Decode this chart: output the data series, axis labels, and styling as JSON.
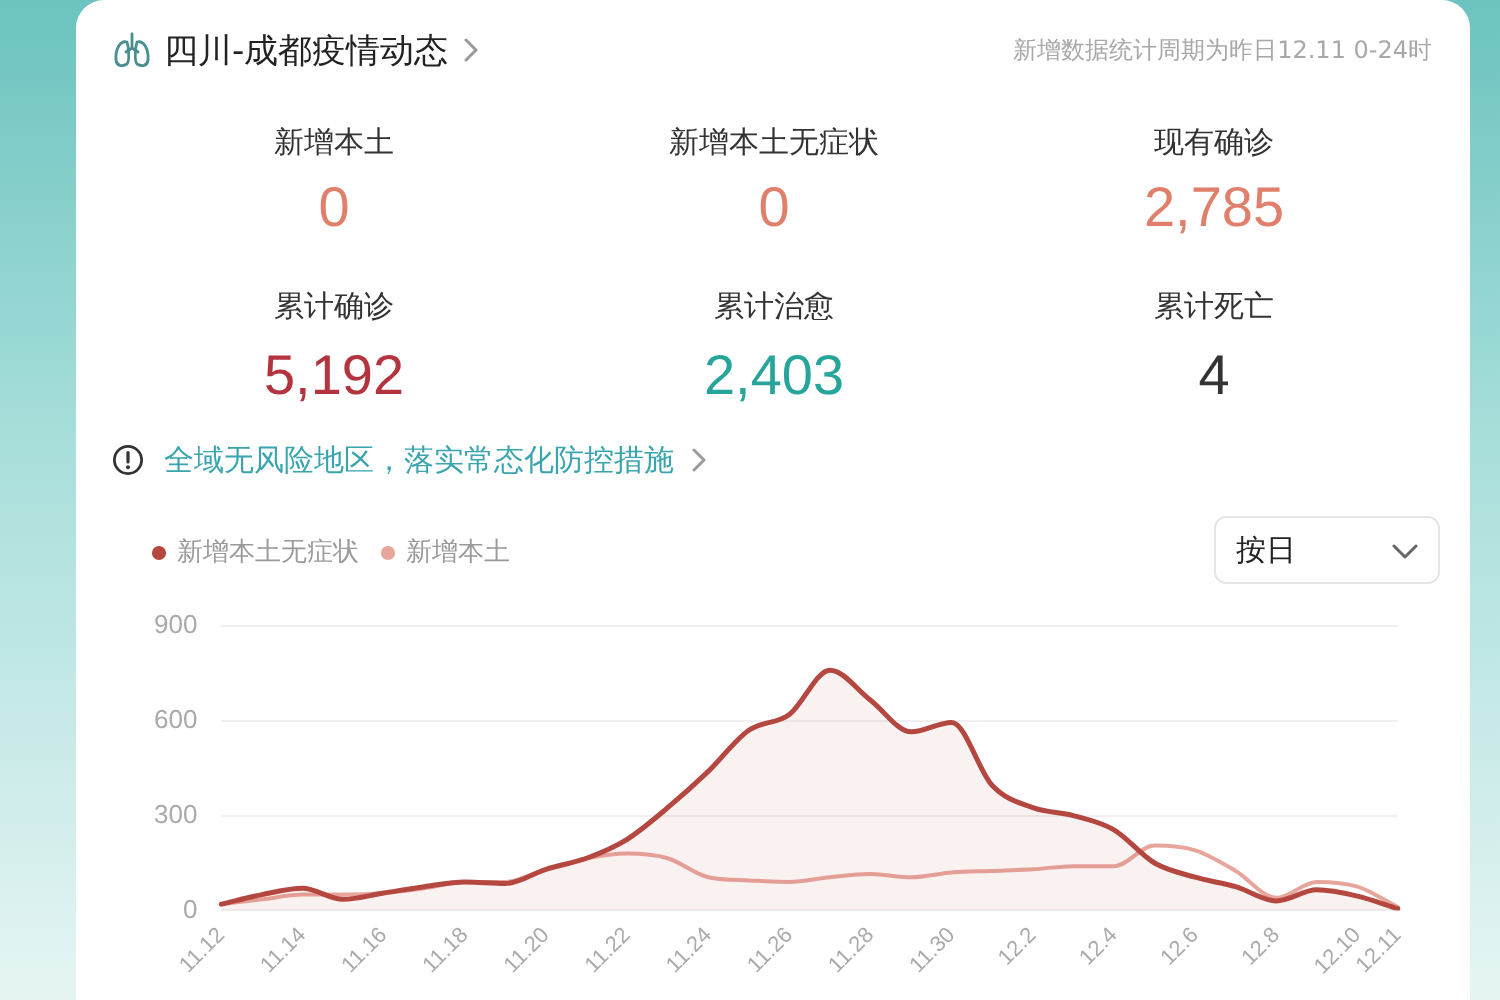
{
  "chart_data": [
    {
      "type": "other",
      "title": "四川-成都疫情动态",
      "subtitle": "新增数据统计周期为昨日12.11 0-24时",
      "annotations": [
        "新增本土",
        "0",
        "新增本土无症状",
        "0",
        "现有确诊",
        "2,785",
        "累计确诊",
        "5,192",
        "累计治愈",
        "2,403",
        "累计死亡",
        "4",
        "全域无风险地区，落实常态化防控措施"
      ]
    },
    {
      "type": "line",
      "categories": [
        "11.12",
        null,
        "11.14",
        null,
        "11.16",
        null,
        "11.18",
        null,
        "11.20",
        null,
        "11.22",
        null,
        "11.24",
        null,
        "11.26",
        null,
        "11.28",
        null,
        "11.30",
        null,
        "12.2",
        null,
        "12.4",
        null,
        "12.6",
        null,
        "12.8",
        null,
        "12.10",
        "12.11"
      ],
      "series": [
        {
          "name": "新增本土无症状",
          "type": "area",
          "color": "#b4473f",
          "values": [
            20,
            50,
            70,
            35,
            55,
            75,
            90,
            85,
            130,
            165,
            225,
            325,
            440,
            570,
            620,
            760,
            665,
            565,
            595,
            395,
            325,
            300,
            255,
            150,
            105,
            75,
            30,
            65,
            45,
            5
          ]
        },
        {
          "name": "新增本土",
          "type": "line",
          "color": "#e8a59c",
          "values": [
            20,
            35,
            50,
            50,
            55,
            70,
            90,
            90,
            130,
            165,
            180,
            165,
            105,
            95,
            90,
            105,
            115,
            105,
            120,
            125,
            130,
            140,
            140,
            205,
            190,
            125,
            40,
            90,
            75,
            10
          ]
        }
      ],
      "ylim": [
        0,
        900
      ],
      "yticks": [
        0,
        300,
        600,
        900
      ],
      "grid": "y",
      "legend": "top left",
      "marker": "none",
      "line_style": "solid",
      "annotations": [
        "按日"
      ]
    }
  ]
}
